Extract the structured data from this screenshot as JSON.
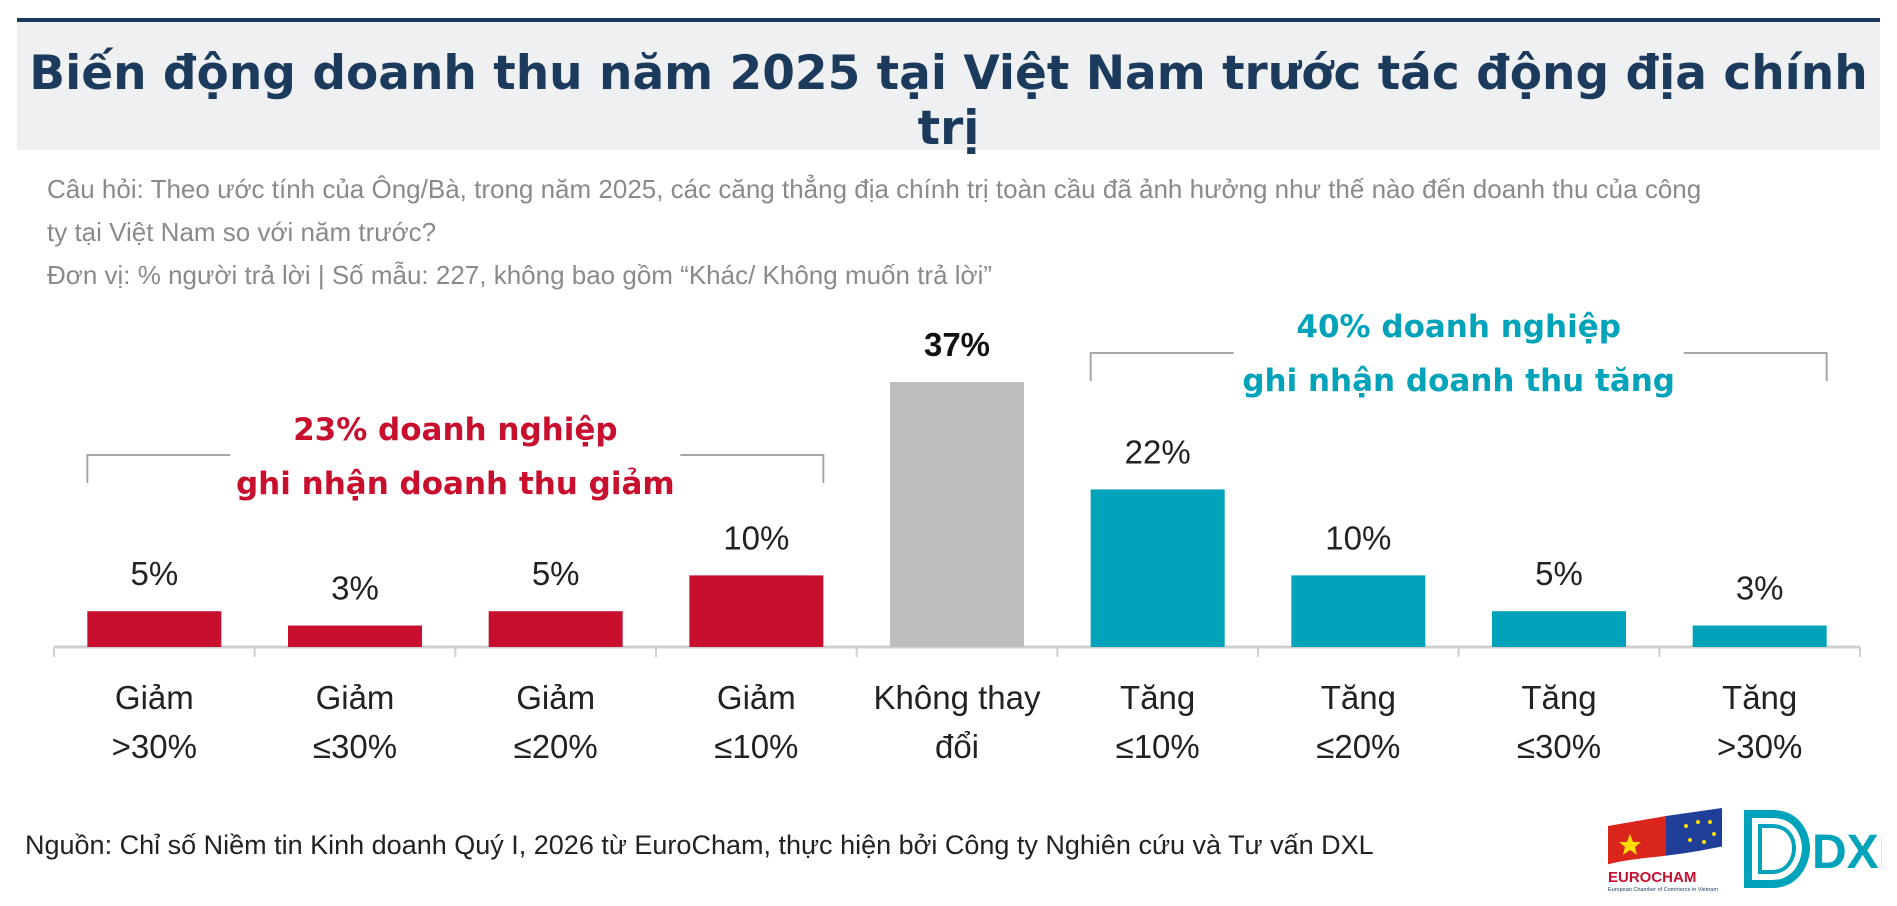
{
  "title": "Biến động doanh thu năm 2025 tại Việt Nam trước tác động địa chính trị",
  "question_lines": [
    "Câu hỏi: Theo ước tính của Ông/Bà, trong năm 2025, các căng thẳng địa chính trị toàn cầu đã ảnh hưởng như thế nào đến doanh thu của công",
    "ty tại Việt Nam so với năm trước?",
    "Đơn vị: % người trả lời | Số mẫu: 227, không bao gồm “Khác/ Không muốn trả lời”"
  ],
  "chart_data": {
    "type": "bar",
    "categories": [
      [
        "Giảm",
        ">30%"
      ],
      [
        "Giảm",
        "≤30%"
      ],
      [
        "Giảm",
        "≤20%"
      ],
      [
        "Giảm",
        "≤10%"
      ],
      [
        "Không thay",
        "đổi"
      ],
      [
        "Tăng",
        "≤10%"
      ],
      [
        "Tăng",
        "≤20%"
      ],
      [
        "Tăng",
        "≤30%"
      ],
      [
        "Tăng",
        ">30%"
      ]
    ],
    "values": [
      5,
      3,
      5,
      10,
      37,
      22,
      10,
      5,
      3
    ],
    "value_labels": [
      "5%",
      "3%",
      "5%",
      "10%",
      "37%",
      "22%",
      "10%",
      "5%",
      "3%"
    ],
    "bar_colors": [
      "#c8102e",
      "#c8102e",
      "#c8102e",
      "#c8102e",
      "#bdbdbd",
      "#00a3b9",
      "#00a3b9",
      "#00a3b9",
      "#00a3b9"
    ],
    "bold_label_index": 4,
    "ylim": [
      0,
      37
    ],
    "grid": false,
    "annotations": [
      {
        "lines": [
          "23% doanh nghiệp",
          "ghi nhận doanh thu giảm"
        ],
        "color": "#c8102e",
        "span": [
          0,
          3
        ]
      },
      {
        "lines": [
          "40% doanh nghiệp",
          "ghi nhận doanh thu tăng"
        ],
        "color": "#00a3b9",
        "span": [
          5,
          8
        ]
      }
    ]
  },
  "footer": "Nguồn: Chỉ số Niềm tin Kinh doanh Quý I, 2026 từ EuroCham, thực hiện bởi Công ty Nghiên cứu và Tư vấn DXL",
  "logos": {
    "eurocham": {
      "name": "EUROCHAM",
      "tagline": "European Chamber of Commerce in Vietnam"
    },
    "dxl": {
      "name": "DXL"
    }
  },
  "colors": {
    "title": "#1b3a5c",
    "decrease": "#c8102e",
    "neutral": "#bdbdbd",
    "increase": "#00a3b9"
  }
}
